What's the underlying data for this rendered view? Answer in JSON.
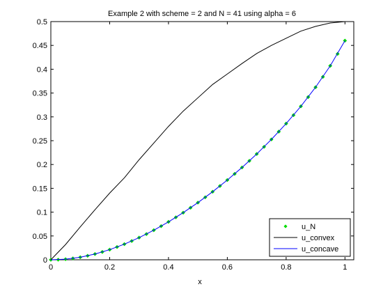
{
  "chart_data": {
    "type": "line",
    "title": "Example 2 with scheme = 2 and N = 41 using alpha = 6",
    "xlabel": "x",
    "ylabel": "",
    "xlim": [
      0,
      1.03
    ],
    "ylim": [
      0,
      0.5
    ],
    "x_ticks": [
      "0",
      "0.2",
      "0.4",
      "0.6",
      "0.8",
      "1"
    ],
    "x_tick_values": [
      0,
      0.2,
      0.4,
      0.6,
      0.8,
      1
    ],
    "y_ticks": [
      "0",
      "0.05",
      "0.1",
      "0.15",
      "0.2",
      "0.25",
      "0.3",
      "0.35",
      "0.4",
      "0.45",
      "0.5"
    ],
    "y_tick_values": [
      0,
      0.05,
      0.1,
      0.15,
      0.2,
      0.25,
      0.3,
      0.35,
      0.4,
      0.45,
      0.5
    ],
    "grid": false,
    "legend": "bottom-right",
    "series": [
      {
        "name": "u_N",
        "style": "points",
        "marker": "diamond",
        "color": "#00dd00",
        "x": [
          0,
          0.025,
          0.05,
          0.075,
          0.1,
          0.125,
          0.15,
          0.175,
          0.2,
          0.225,
          0.25,
          0.275,
          0.3,
          0.325,
          0.35,
          0.375,
          0.4,
          0.425,
          0.45,
          0.475,
          0.5,
          0.525,
          0.55,
          0.575,
          0.6,
          0.625,
          0.65,
          0.675,
          0.7,
          0.725,
          0.75,
          0.775,
          0.8,
          0.825,
          0.85,
          0.875,
          0.9,
          0.925,
          0.95,
          0.975,
          1
        ],
        "y": [
          0,
          0.0002,
          0.0012,
          0.0029,
          0.0053,
          0.0084,
          0.0121,
          0.0164,
          0.0213,
          0.0268,
          0.0328,
          0.0394,
          0.0465,
          0.054,
          0.0621,
          0.0706,
          0.0796,
          0.0891,
          0.0989,
          0.1093,
          0.12,
          0.1312,
          0.1428,
          0.1549,
          0.1674,
          0.1803,
          0.1938,
          0.2077,
          0.2221,
          0.2371,
          0.2527,
          0.269,
          0.2859,
          0.3036,
          0.3221,
          0.3416,
          0.3622,
          0.384,
          0.4072,
          0.4322,
          0.46
        ]
      },
      {
        "name": "u_convex",
        "style": "line",
        "color": "#000000",
        "x": [
          0,
          0.05,
          0.1,
          0.15,
          0.2,
          0.25,
          0.3,
          0.35,
          0.4,
          0.45,
          0.5,
          0.55,
          0.6,
          0.65,
          0.7,
          0.75,
          0.8,
          0.85,
          0.9,
          0.95,
          1
        ],
        "y": [
          0,
          0.032,
          0.069,
          0.105,
          0.14,
          0.172,
          0.21,
          0.245,
          0.28,
          0.312,
          0.34,
          0.368,
          0.39,
          0.412,
          0.433,
          0.45,
          0.465,
          0.48,
          0.49,
          0.497,
          0.5
        ]
      },
      {
        "name": "u_concave",
        "style": "line",
        "color": "#0000ff",
        "x": [
          0,
          0.05,
          0.1,
          0.15,
          0.2,
          0.25,
          0.3,
          0.35,
          0.4,
          0.45,
          0.5,
          0.55,
          0.6,
          0.65,
          0.7,
          0.75,
          0.8,
          0.85,
          0.9,
          0.95,
          1
        ],
        "y": [
          0,
          0.0012,
          0.0053,
          0.0121,
          0.0213,
          0.0328,
          0.0465,
          0.0621,
          0.0796,
          0.0989,
          0.12,
          0.1428,
          0.1674,
          0.1938,
          0.2221,
          0.2527,
          0.2859,
          0.3221,
          0.3622,
          0.4072,
          0.46
        ]
      }
    ]
  }
}
